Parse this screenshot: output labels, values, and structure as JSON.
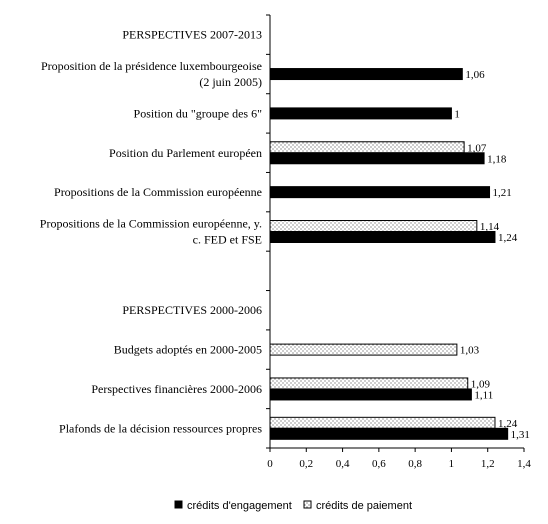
{
  "chart_data": {
    "type": "bar",
    "orientation": "horizontal",
    "title": "",
    "xlabel": "",
    "ylabel": "",
    "xlim": [
      0,
      1.4
    ],
    "x_ticks": [
      "0",
      "0,2",
      "0,4",
      "0,6",
      "0,8",
      "1",
      "1,2",
      "1,4"
    ],
    "grid": false,
    "legend_position": "bottom",
    "categories": [
      {
        "label_lines": [
          "PERSPECTIVES 2007-2013"
        ],
        "is_header": true
      },
      {
        "label_lines": [
          "Proposition de la présidence luxembourgeoise",
          "(2 juin 2005)"
        ]
      },
      {
        "label_lines": [
          "Position du \"groupe des 6\""
        ]
      },
      {
        "label_lines": [
          "Position du Parlement européen"
        ]
      },
      {
        "label_lines": [
          "Propositions de la Commission européenne"
        ]
      },
      {
        "label_lines": [
          "Propositions de la Commission européenne, y.",
          "c. FED et FSE"
        ]
      },
      {
        "label_lines": [
          ""
        ],
        "is_blank": true
      },
      {
        "label_lines": [
          "PERSPECTIVES 2000-2006"
        ],
        "is_header": true
      },
      {
        "label_lines": [
          "Budgets adoptés en 2000-2005"
        ]
      },
      {
        "label_lines": [
          "Perspectives financières 2000-2006"
        ]
      },
      {
        "label_lines": [
          "Plafonds de la décision ressources propres"
        ]
      }
    ],
    "series": [
      {
        "name": "crédits d'engagement",
        "color": "#000000",
        "values": [
          null,
          1.06,
          1.0,
          1.18,
          1.21,
          1.24,
          null,
          null,
          null,
          1.11,
          1.31
        ],
        "labels": [
          null,
          "1,06",
          "1",
          "1,18",
          "1,21",
          "1,24",
          null,
          null,
          null,
          "1,11",
          "1,31"
        ]
      },
      {
        "name": "crédits de paiement",
        "color": "#ffffff",
        "pattern": "dots",
        "values": [
          null,
          null,
          null,
          1.07,
          null,
          1.14,
          null,
          null,
          1.03,
          1.09,
          1.24
        ],
        "labels": [
          null,
          null,
          null,
          "1,07",
          null,
          "1,14",
          null,
          null,
          "1,03",
          "1,09",
          "1,24"
        ]
      }
    ]
  }
}
